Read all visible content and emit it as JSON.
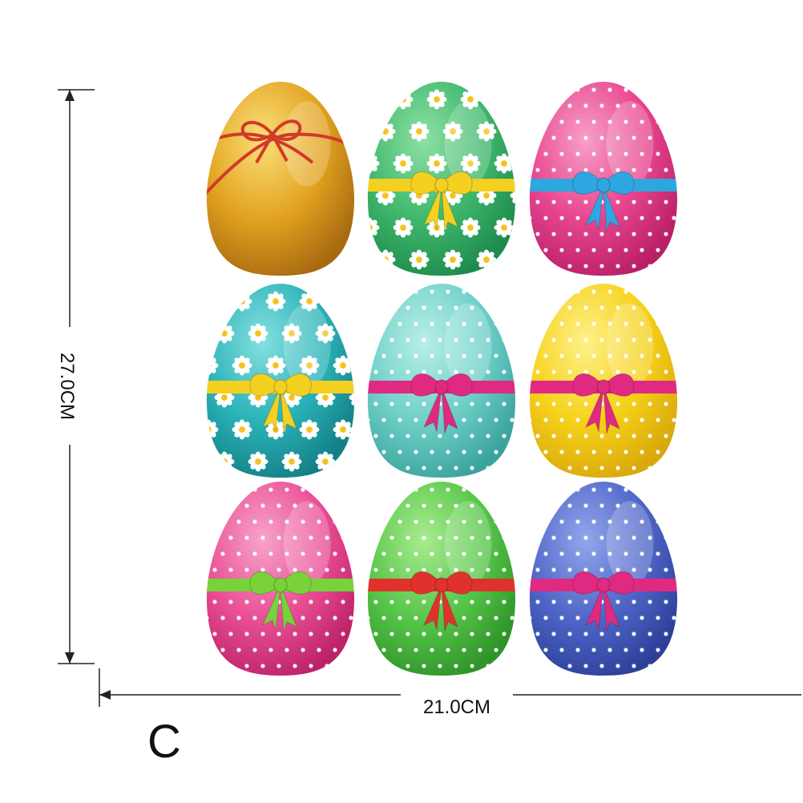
{
  "dimensions": {
    "height_label": "27.0CM",
    "width_label": "21.0CM"
  },
  "variant_label": "C",
  "eggs": [
    {
      "id": "gold",
      "base": "#e2a320",
      "light": "#fbe07a",
      "dark": "#a86a10",
      "pattern": "plain",
      "ribbon": "#d23a2a"
    },
    {
      "id": "green-daisy",
      "base": "#3fb86c",
      "light": "#8fe0a6",
      "dark": "#1e8a4c",
      "pattern": "daisies",
      "ribbon": "#f4d020"
    },
    {
      "id": "pink-dots-blue",
      "base": "#e8458f",
      "light": "#f7a0c8",
      "dark": "#b81f66",
      "pattern": "dots",
      "ribbon": "#2ea6e0"
    },
    {
      "id": "teal-daisy",
      "base": "#2ab3b8",
      "light": "#86e0e0",
      "dark": "#137f86",
      "pattern": "daisies",
      "ribbon": "#f4d020"
    },
    {
      "id": "mint-dots",
      "base": "#6fd0c8",
      "light": "#b8efe8",
      "dark": "#3aa39c",
      "pattern": "dots",
      "ribbon": "#e02a82"
    },
    {
      "id": "yellow-dots",
      "base": "#f6d21a",
      "light": "#fff08a",
      "dark": "#d9a80c",
      "pattern": "dots",
      "ribbon": "#e02a82"
    },
    {
      "id": "pink-dots-green",
      "base": "#ea4f96",
      "light": "#f7a4ca",
      "dark": "#bd2269",
      "pattern": "dots",
      "ribbon": "#78d23a"
    },
    {
      "id": "green-dots",
      "base": "#58c64a",
      "light": "#a8ec8e",
      "dark": "#2e9428",
      "pattern": "dots",
      "ribbon": "#e0322c"
    },
    {
      "id": "blue-dots",
      "base": "#4f66c8",
      "light": "#93a6ec",
      "dark": "#2d3f99",
      "pattern": "dots",
      "ribbon": "#e02a82"
    }
  ]
}
